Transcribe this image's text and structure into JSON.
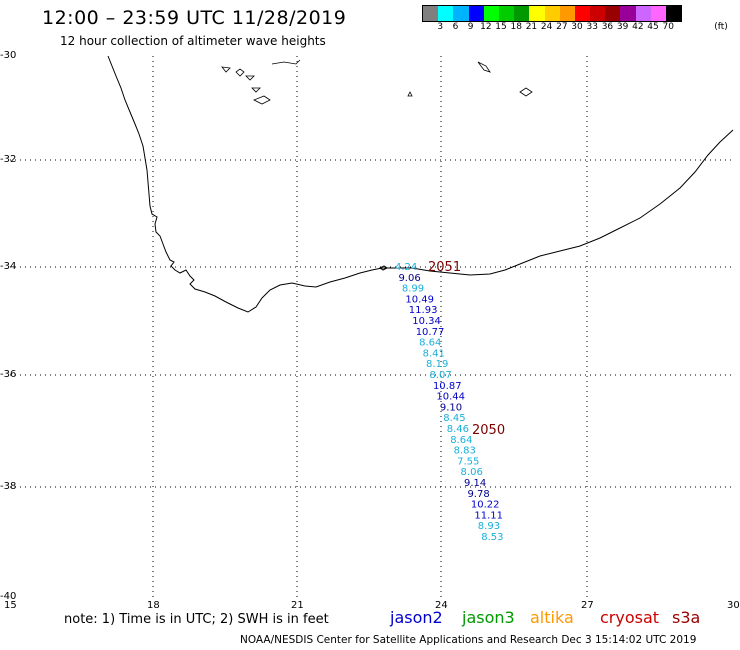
{
  "header": {
    "title": "12:00 – 23:59 UTC 11/28/2019",
    "subtitle": "12 hour collection of altimeter wave heights"
  },
  "colorbar": {
    "colors": [
      "#7f7f7f",
      "#00ffff",
      "#00b3ff",
      "#0000ff",
      "#00ff00",
      "#00cc00",
      "#009900",
      "#ffff00",
      "#ffcc00",
      "#ff9900",
      "#ff0000",
      "#cc0000",
      "#990000",
      "#990099",
      "#cc66ff",
      "#ff66ff",
      "#000000"
    ],
    "labels": [
      "3",
      "6",
      "9",
      "12",
      "15",
      "18",
      "21",
      "24",
      "27",
      "30",
      "33",
      "36",
      "39",
      "42",
      "45",
      "70"
    ],
    "unit": "(ft)"
  },
  "axes": {
    "lat_labels": [
      "-30",
      "-32",
      "-34",
      "-36",
      "-38",
      "-40"
    ],
    "lon_labels": [
      "15",
      "18",
      "21",
      "24",
      "27",
      "30"
    ]
  },
  "track": {
    "pass_labels": [
      "2051",
      "2050"
    ],
    "points": [
      {
        "value": "4.24",
        "color": "#1ab0d8"
      },
      {
        "value": "9.06",
        "color": "#00008b"
      },
      {
        "value": "8.99",
        "color": "#1ab0d8"
      },
      {
        "value": "10.49",
        "color": "#0000cc"
      },
      {
        "value": "11.93",
        "color": "#0000cc"
      },
      {
        "value": "10.34",
        "color": "#0000cc"
      },
      {
        "value": "10.77",
        "color": "#0000cc"
      },
      {
        "value": "8.64",
        "color": "#1ab0d8"
      },
      {
        "value": "8.41",
        "color": "#1ab0d8"
      },
      {
        "value": "8.19",
        "color": "#1ab0d8"
      },
      {
        "value": "8.07",
        "color": "#1ab0d8"
      },
      {
        "value": "10.87",
        "color": "#0000cc"
      },
      {
        "value": "10.44",
        "color": "#0000cc"
      },
      {
        "value": "9.10",
        "color": "#00008b"
      },
      {
        "value": "8.45",
        "color": "#1ab0d8"
      },
      {
        "value": "8.46",
        "color": "#1ab0d8"
      },
      {
        "value": "8.64",
        "color": "#1ab0d8"
      },
      {
        "value": "8.83",
        "color": "#1ab0d8"
      },
      {
        "value": "7.55",
        "color": "#1ab0d8"
      },
      {
        "value": "8.06",
        "color": "#1ab0d8"
      },
      {
        "value": "9.14",
        "color": "#00008b"
      },
      {
        "value": "9.78",
        "color": "#00008b"
      },
      {
        "value": "10.22",
        "color": "#0000cc"
      },
      {
        "value": "11.11",
        "color": "#0000cc"
      },
      {
        "value": "8.93",
        "color": "#1ab0d8"
      },
      {
        "value": "8.53",
        "color": "#1ab0d8"
      }
    ]
  },
  "note": "note:  1) Time is in UTC;  2) SWH is in feet",
  "satellites": [
    {
      "name": "jason2",
      "color": "#0000cc"
    },
    {
      "name": "jason3",
      "color": "#009900"
    },
    {
      "name": "altika",
      "color": "#ff9900"
    },
    {
      "name": "cryosat",
      "color": "#cc0000"
    },
    {
      "name": "s3a",
      "color": "#990000"
    }
  ],
  "footer": "NOAA/NESDIS Center for Satellite Applications and Research    Dec  3 15:14:02 UTC 2019"
}
